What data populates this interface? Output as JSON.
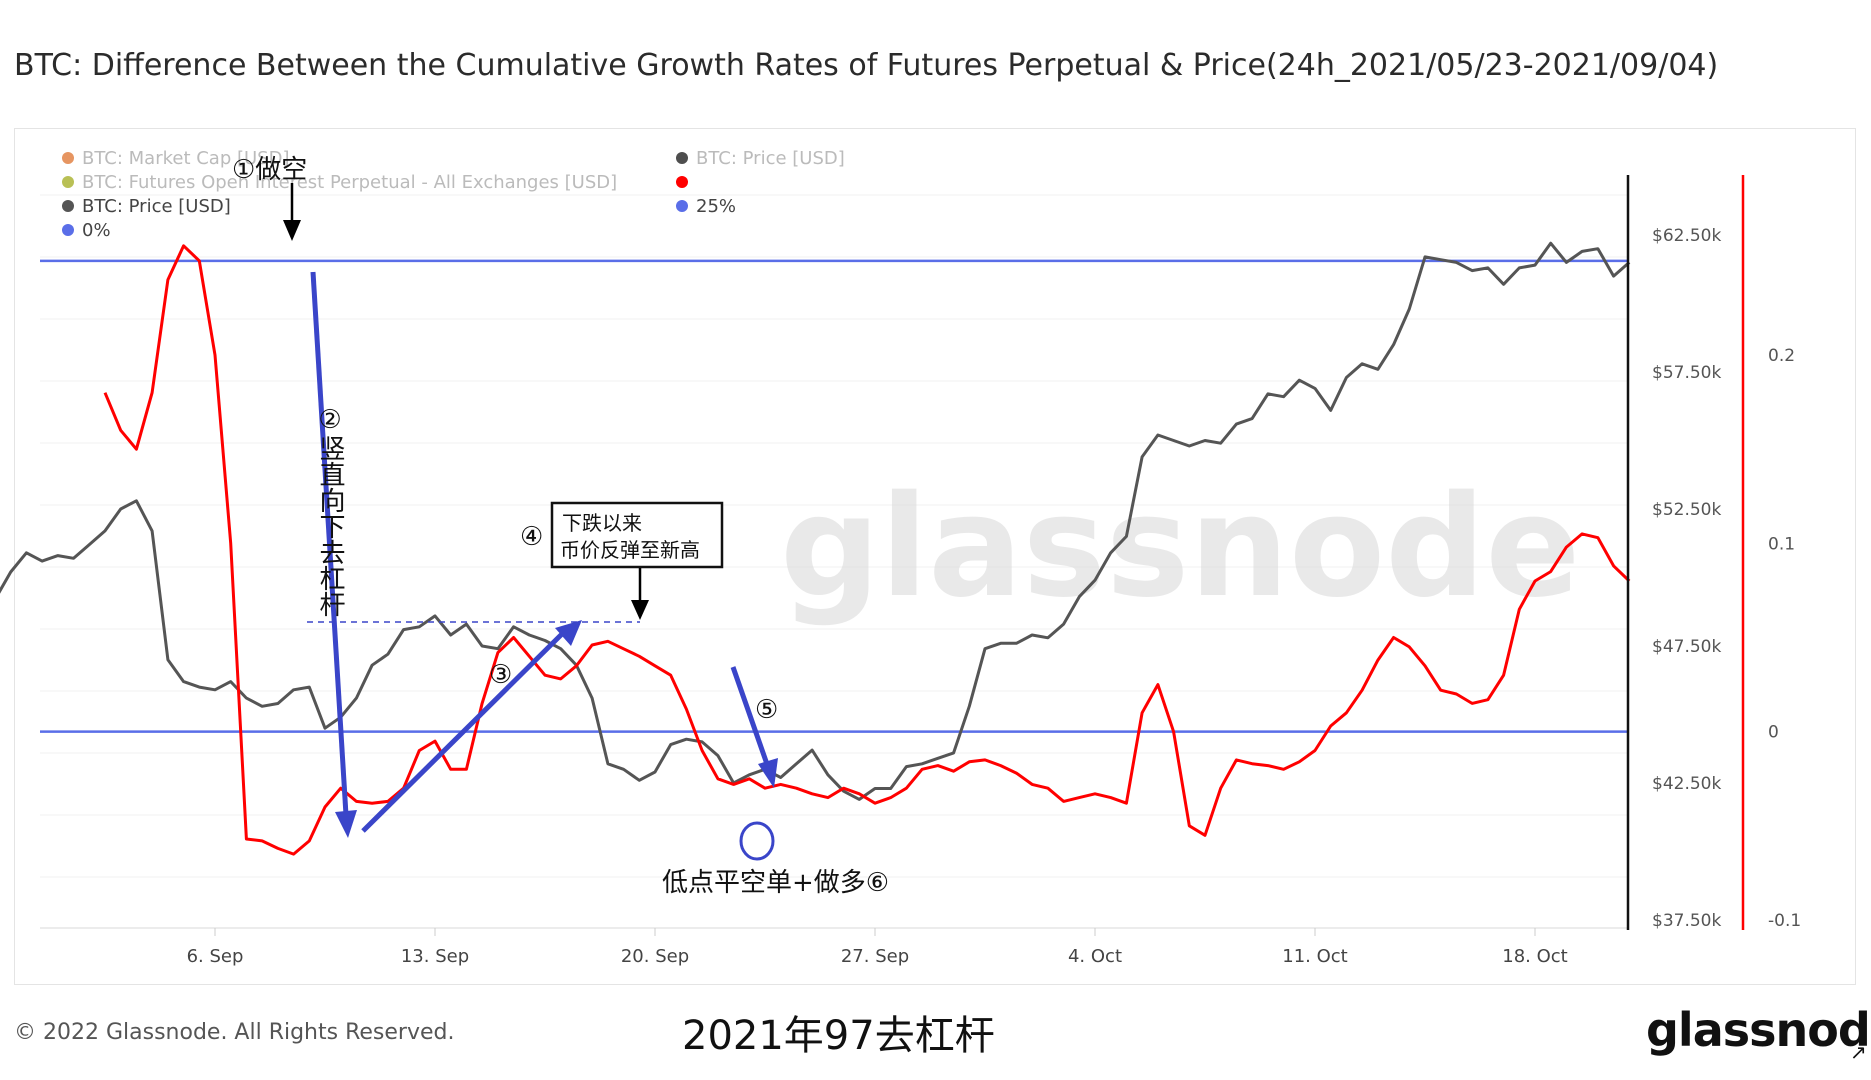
{
  "title": "BTC: Difference Between the Cumulative Growth Rates of Futures Perpetual & Price(24h_2021/05/23-2021/09/04)",
  "footer": {
    "copyright": "© 2022 Glassnode. All Rights Reserved.",
    "caption": "2021年97去杠杆",
    "logo": "glassnode",
    "watermark": "glassnode"
  },
  "legend": {
    "left": [
      {
        "label": "BTC: Market Cap [USD]",
        "color": "#e07b39",
        "faded": true
      },
      {
        "label": "BTC: Futures Open Interest Perpetual - All Exchanges [USD]",
        "color": "#a8b02a",
        "faded": true
      },
      {
        "label": "BTC: Price [USD]",
        "color": "#555555",
        "faded": false
      },
      {
        "label": "0%",
        "color": "#5a6ee8",
        "faded": false
      }
    ],
    "right": [
      {
        "label": "BTC: Price [USD]",
        "color": "#222222",
        "faded": true
      },
      {
        "label": "",
        "color": "#ff0000",
        "faded": false
      },
      {
        "label": "25%",
        "color": "#5a6ee8",
        "faded": false
      }
    ]
  },
  "annotations": {
    "a1": "①做空",
    "a2": "②竖直向下去杠杆",
    "a3": "③",
    "a4": "④",
    "a4_box_line1": "下跌以来",
    "a4_box_line2": "币价反弹至新高",
    "a5": "⑤",
    "a6": "低点平空单+做多⑥"
  },
  "chart_data": {
    "type": "line",
    "x_ticks": [
      "6. Sep",
      "13. Sep",
      "20. Sep",
      "27. Sep",
      "4. Oct",
      "11. Oct",
      "18. Oct"
    ],
    "y_left_ticks": [
      "$62.50k",
      "$57.50k",
      "$52.50k",
      "$47.50k",
      "$42.50k",
      "$37.50k"
    ],
    "y_left_range": [
      37500,
      62500
    ],
    "y_right_ticks": [
      "0.2",
      "0.1",
      "0",
      "-0.1"
    ],
    "y_right_range": [
      -0.1,
      0.2
    ],
    "series": [
      {
        "name": "BTC: Price [USD]",
        "axis": "left",
        "color": "#555555",
        "points": [
          [
            0,
            48700
          ],
          [
            0.5,
            48300
          ],
          [
            1,
            48500
          ],
          [
            1.5,
            49200
          ],
          [
            2,
            50200
          ],
          [
            2.5,
            50900
          ],
          [
            3,
            50600
          ],
          [
            3.5,
            50800
          ],
          [
            4,
            50700
          ],
          [
            4.5,
            51200
          ],
          [
            5,
            51700
          ],
          [
            5.5,
            52500
          ],
          [
            6,
            52800
          ],
          [
            6.5,
            51700
          ],
          [
            7,
            47000
          ],
          [
            7.5,
            46200
          ],
          [
            8,
            46000
          ],
          [
            8.5,
            45900
          ],
          [
            9,
            46200
          ],
          [
            9.5,
            45600
          ],
          [
            10,
            45300
          ],
          [
            10.5,
            45400
          ],
          [
            11,
            45900
          ],
          [
            11.5,
            46000
          ],
          [
            12,
            44500
          ],
          [
            12.5,
            44900
          ],
          [
            13,
            45600
          ],
          [
            13.5,
            46800
          ],
          [
            14,
            47200
          ],
          [
            14.5,
            48100
          ],
          [
            15,
            48200
          ],
          [
            15.5,
            48600
          ],
          [
            16,
            47900
          ],
          [
            16.5,
            48300
          ],
          [
            17,
            47500
          ],
          [
            17.5,
            47400
          ],
          [
            18,
            48200
          ],
          [
            18.5,
            47900
          ],
          [
            19,
            47700
          ],
          [
            19.5,
            47400
          ],
          [
            20,
            46800
          ],
          [
            20.5,
            45600
          ],
          [
            21,
            43200
          ],
          [
            21.5,
            43000
          ],
          [
            22,
            42600
          ],
          [
            22.5,
            42900
          ],
          [
            23,
            43900
          ],
          [
            23.5,
            44100
          ],
          [
            24,
            44000
          ],
          [
            24.5,
            43500
          ],
          [
            25,
            42500
          ],
          [
            25.5,
            42800
          ],
          [
            26,
            43000
          ],
          [
            26.5,
            42700
          ],
          [
            27,
            43200
          ],
          [
            27.5,
            43700
          ],
          [
            28,
            42800
          ],
          [
            28.5,
            42200
          ],
          [
            29,
            41900
          ],
          [
            29.5,
            42300
          ],
          [
            30,
            42300
          ],
          [
            30.5,
            43100
          ],
          [
            31,
            43200
          ],
          [
            31.5,
            43400
          ],
          [
            32,
            43600
          ],
          [
            32.5,
            45300
          ],
          [
            33,
            47400
          ],
          [
            33.5,
            47600
          ],
          [
            34,
            47600
          ],
          [
            34.5,
            47900
          ],
          [
            35,
            47800
          ],
          [
            35.5,
            48300
          ],
          [
            36,
            49300
          ],
          [
            36.5,
            49900
          ],
          [
            37,
            50900
          ],
          [
            37.5,
            51500
          ],
          [
            38,
            54400
          ],
          [
            38.5,
            55200
          ],
          [
            39,
            55000
          ],
          [
            39.5,
            54800
          ],
          [
            40,
            55000
          ],
          [
            40.5,
            54900
          ],
          [
            41,
            55600
          ],
          [
            41.5,
            55800
          ],
          [
            42,
            56700
          ],
          [
            42.5,
            56600
          ],
          [
            43,
            57200
          ],
          [
            43.5,
            56900
          ],
          [
            44,
            56100
          ],
          [
            44.5,
            57300
          ],
          [
            45,
            57800
          ],
          [
            45.5,
            57600
          ],
          [
            46,
            58500
          ],
          [
            46.5,
            59800
          ],
          [
            47,
            61700
          ],
          [
            47.5,
            61600
          ],
          [
            48,
            61500
          ],
          [
            48.5,
            61200
          ],
          [
            49,
            61300
          ],
          [
            49.5,
            60700
          ],
          [
            50,
            61300
          ],
          [
            50.5,
            61400
          ],
          [
            51,
            62200
          ],
          [
            51.5,
            61500
          ],
          [
            52,
            61900
          ],
          [
            52.5,
            62000
          ],
          [
            53,
            61000
          ],
          [
            53.5,
            61500
          ]
        ]
      },
      {
        "name": "",
        "axis": "right",
        "color": "#ff0000",
        "points": [
          [
            5,
            0.18
          ],
          [
            5.5,
            0.16
          ],
          [
            6,
            0.15
          ],
          [
            6.5,
            0.18
          ],
          [
            7,
            0.24
          ],
          [
            7.5,
            0.258
          ],
          [
            8,
            0.25
          ],
          [
            8.5,
            0.2
          ],
          [
            9,
            0.1
          ],
          [
            9.5,
            -0.057
          ],
          [
            10,
            -0.058
          ],
          [
            10.5,
            -0.062
          ],
          [
            11,
            -0.065
          ],
          [
            11.5,
            -0.058
          ],
          [
            12,
            -0.04
          ],
          [
            12.5,
            -0.03
          ],
          [
            13,
            -0.037
          ],
          [
            13.5,
            -0.038
          ],
          [
            14,
            -0.037
          ],
          [
            14.5,
            -0.03
          ],
          [
            15,
            -0.01
          ],
          [
            15.5,
            -0.005
          ],
          [
            16,
            -0.02
          ],
          [
            16.5,
            -0.02
          ],
          [
            17,
            0.015
          ],
          [
            17.5,
            0.042
          ],
          [
            18,
            0.05
          ],
          [
            18.5,
            0.04
          ],
          [
            19,
            0.03
          ],
          [
            19.5,
            0.028
          ],
          [
            20,
            0.035
          ],
          [
            20.5,
            0.046
          ],
          [
            21,
            0.048
          ],
          [
            21.5,
            0.044
          ],
          [
            22,
            0.04
          ],
          [
            22.5,
            0.035
          ],
          [
            23,
            0.03
          ],
          [
            23.5,
            0.012
          ],
          [
            24,
            -0.01
          ],
          [
            24.5,
            -0.025
          ],
          [
            25,
            -0.028
          ],
          [
            25.5,
            -0.025
          ],
          [
            26,
            -0.03
          ],
          [
            26.5,
            -0.028
          ],
          [
            27,
            -0.03
          ],
          [
            27.5,
            -0.033
          ],
          [
            28,
            -0.035
          ],
          [
            28.5,
            -0.03
          ],
          [
            29,
            -0.033
          ],
          [
            29.5,
            -0.038
          ],
          [
            30,
            -0.035
          ],
          [
            30.5,
            -0.03
          ],
          [
            31,
            -0.02
          ],
          [
            31.5,
            -0.018
          ],
          [
            32,
            -0.021
          ],
          [
            32.5,
            -0.016
          ],
          [
            33,
            -0.015
          ],
          [
            33.5,
            -0.018
          ],
          [
            34,
            -0.022
          ],
          [
            34.5,
            -0.028
          ],
          [
            35,
            -0.03
          ],
          [
            35.5,
            -0.037
          ],
          [
            36,
            -0.035
          ],
          [
            36.5,
            -0.033
          ],
          [
            37,
            -0.035
          ],
          [
            37.5,
            -0.038
          ],
          [
            38,
            0.01
          ],
          [
            38.5,
            0.025
          ],
          [
            39,
            0.0
          ],
          [
            39.5,
            -0.05
          ],
          [
            40,
            -0.055
          ],
          [
            40.5,
            -0.03
          ],
          [
            41,
            -0.015
          ],
          [
            41.5,
            -0.017
          ],
          [
            42,
            -0.018
          ],
          [
            42.5,
            -0.02
          ],
          [
            43,
            -0.016
          ],
          [
            43.5,
            -0.01
          ],
          [
            44,
            0.003
          ],
          [
            44.5,
            0.01
          ],
          [
            45,
            0.022
          ],
          [
            45.5,
            0.038
          ],
          [
            46,
            0.05
          ],
          [
            46.5,
            0.045
          ],
          [
            47,
            0.035
          ],
          [
            47.5,
            0.022
          ],
          [
            48,
            0.02
          ],
          [
            48.5,
            0.015
          ],
          [
            49,
            0.017
          ],
          [
            49.5,
            0.03
          ],
          [
            50,
            0.065
          ],
          [
            50.5,
            0.08
          ],
          [
            51,
            0.085
          ],
          [
            51.5,
            0.098
          ],
          [
            52,
            0.105
          ],
          [
            52.5,
            0.103
          ],
          [
            53,
            0.088
          ],
          [
            53.5,
            0.08
          ]
        ]
      },
      {
        "name": "0%",
        "axis": "right",
        "color": "#5a6ee8",
        "value": 0
      },
      {
        "name": "25%",
        "axis": "right",
        "color": "#5a6ee8",
        "value": 0.25
      }
    ]
  }
}
